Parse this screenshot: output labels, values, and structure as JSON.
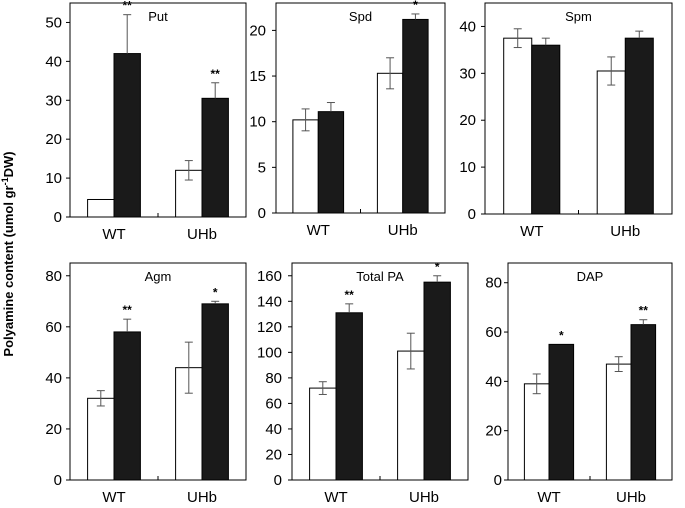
{
  "figure": {
    "ylabel_main": "Polyamine content (umol gr",
    "ylabel_sup": "-1",
    "ylabel_end": "DW)"
  },
  "chart_data": [
    {
      "type": "bar",
      "title": "Put",
      "categories": [
        "WT",
        "UHb"
      ],
      "series": [
        {
          "name": "white",
          "color": "#ffffff",
          "values": [
            4.5,
            12
          ],
          "errors": [
            0,
            2.5
          ]
        },
        {
          "name": "black",
          "color": "#1a1a1a",
          "values": [
            42,
            30.5
          ],
          "errors": [
            10,
            4
          ]
        }
      ],
      "significance": [
        "**",
        "**"
      ],
      "ylim": [
        0,
        55
      ],
      "yticks": [
        0,
        10,
        20,
        30,
        40,
        50
      ],
      "xlabel": "",
      "ylabel": ""
    },
    {
      "type": "bar",
      "title": "Spd",
      "categories": [
        "WT",
        "UHb"
      ],
      "series": [
        {
          "name": "white",
          "color": "#ffffff",
          "values": [
            10.2,
            15.3
          ],
          "errors": [
            1.2,
            1.7
          ]
        },
        {
          "name": "black",
          "color": "#1a1a1a",
          "values": [
            11.1,
            21.2
          ],
          "errors": [
            1.0,
            0.6
          ]
        }
      ],
      "significance": [
        "",
        "*"
      ],
      "ylim": [
        0,
        23
      ],
      "yticks": [
        0,
        5,
        10,
        15,
        20
      ],
      "xlabel": "",
      "ylabel": ""
    },
    {
      "type": "bar",
      "title": "Spm",
      "categories": [
        "WT",
        "UHb"
      ],
      "series": [
        {
          "name": "white",
          "color": "#ffffff",
          "values": [
            37.5,
            30.5
          ],
          "errors": [
            2.0,
            3.0
          ]
        },
        {
          "name": "black",
          "color": "#1a1a1a",
          "values": [
            36,
            37.5
          ],
          "errors": [
            1.5,
            1.5
          ]
        }
      ],
      "significance": [
        "",
        ""
      ],
      "ylim": [
        0,
        45
      ],
      "yticks": [
        0,
        10,
        20,
        30,
        40
      ],
      "xlabel": "",
      "ylabel": ""
    },
    {
      "type": "bar",
      "title": "Agm",
      "categories": [
        "WT",
        "UHb"
      ],
      "series": [
        {
          "name": "white",
          "color": "#ffffff",
          "values": [
            32,
            44
          ],
          "errors": [
            3,
            10
          ]
        },
        {
          "name": "black",
          "color": "#1a1a1a",
          "values": [
            58,
            69
          ],
          "errors": [
            5,
            1
          ]
        }
      ],
      "significance": [
        "**",
        "*"
      ],
      "ylim": [
        0,
        85
      ],
      "yticks": [
        0,
        20,
        40,
        60,
        80
      ],
      "xlabel": "",
      "ylabel": ""
    },
    {
      "type": "bar",
      "title": "Total PA",
      "categories": [
        "WT",
        "UHb"
      ],
      "series": [
        {
          "name": "white",
          "color": "#ffffff",
          "values": [
            72,
            101
          ],
          "errors": [
            5,
            14
          ]
        },
        {
          "name": "black",
          "color": "#1a1a1a",
          "values": [
            131,
            155
          ],
          "errors": [
            7,
            5
          ]
        }
      ],
      "significance": [
        "**",
        "*"
      ],
      "ylim": [
        0,
        170
      ],
      "yticks": [
        0,
        20,
        40,
        60,
        80,
        100,
        120,
        140,
        160
      ],
      "xlabel": "",
      "ylabel": ""
    },
    {
      "type": "bar",
      "title": "DAP",
      "categories": [
        "WT",
        "UHb"
      ],
      "series": [
        {
          "name": "white",
          "color": "#ffffff",
          "values": [
            39,
            47
          ],
          "errors": [
            4,
            3
          ]
        },
        {
          "name": "black",
          "color": "#1a1a1a",
          "values": [
            55,
            63
          ],
          "errors": [
            0,
            2
          ]
        }
      ],
      "significance": [
        "*",
        "**"
      ],
      "ylim": [
        0,
        88
      ],
      "yticks": [
        0,
        20,
        40,
        60,
        80
      ],
      "xlabel": "",
      "ylabel": ""
    }
  ]
}
